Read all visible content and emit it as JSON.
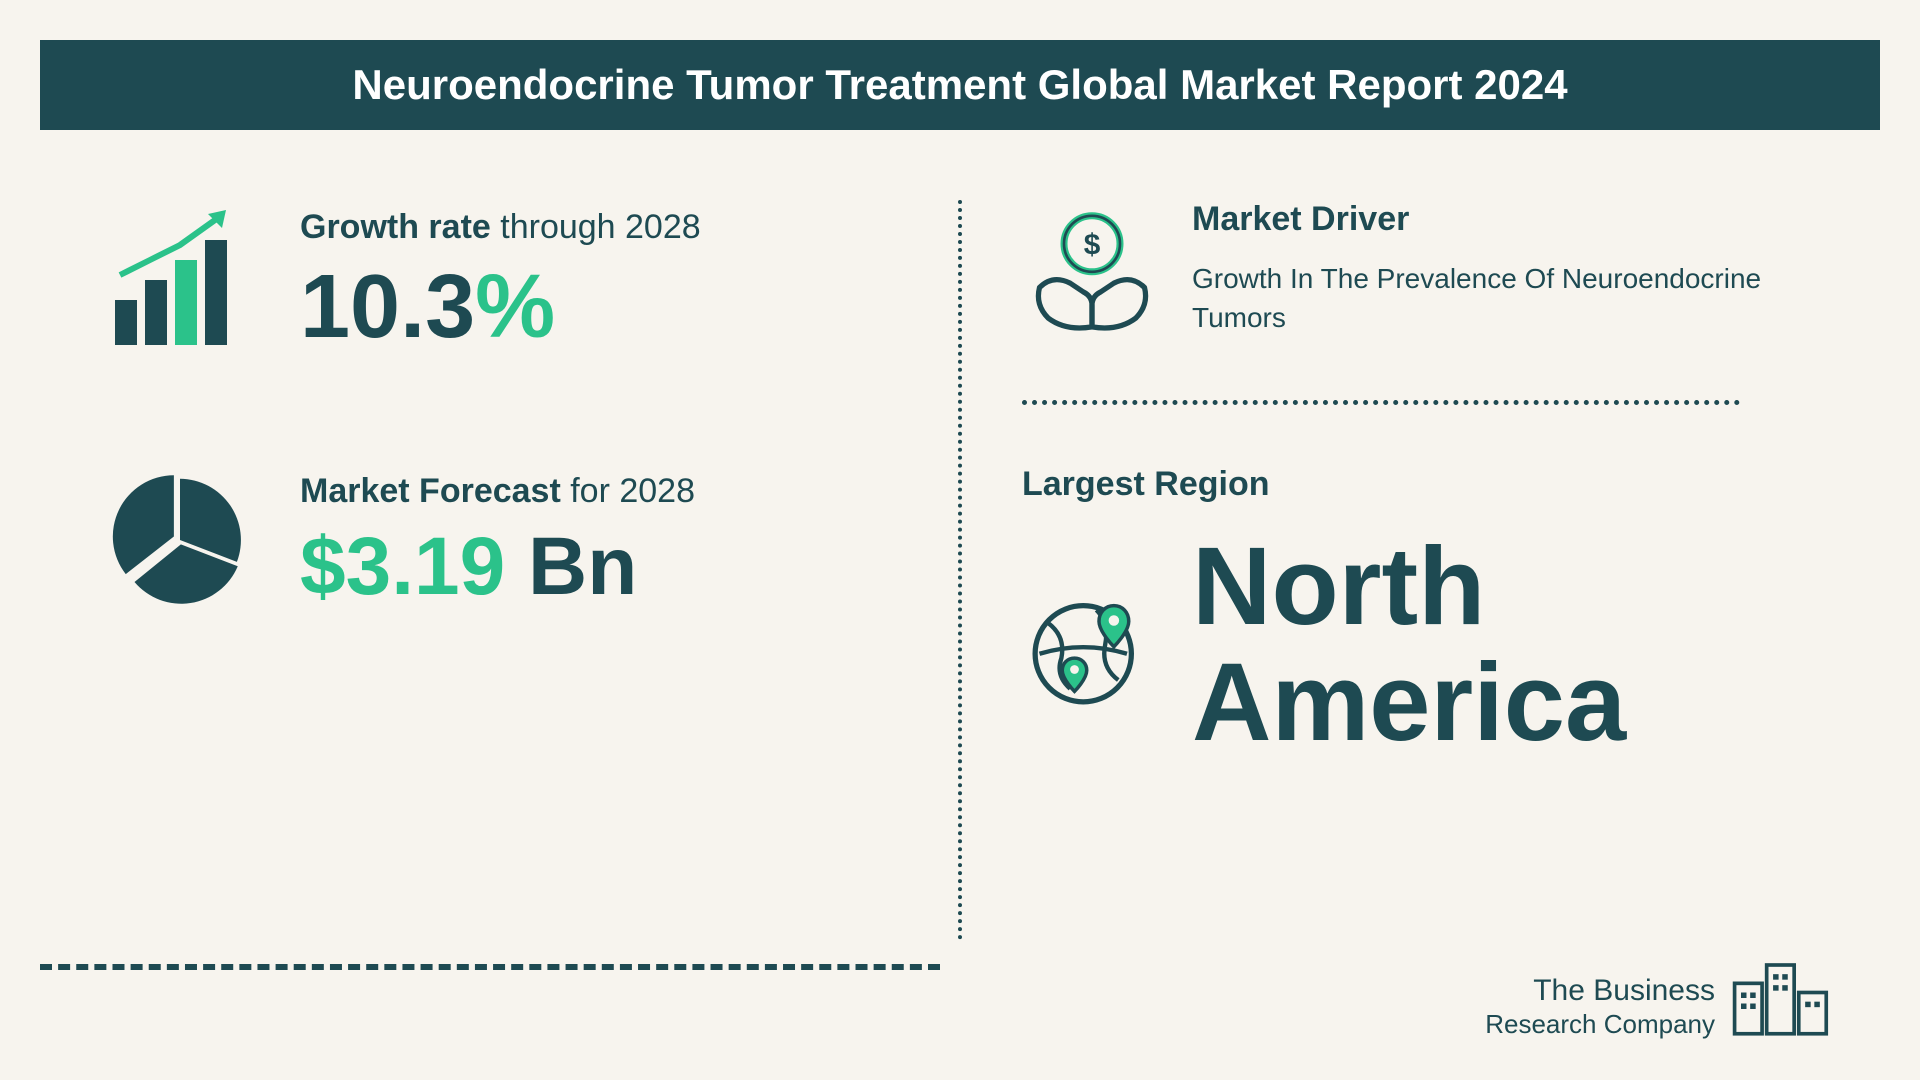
{
  "header": {
    "title": "Neuroendocrine Tumor Treatment Global Market Report 2024"
  },
  "growth": {
    "label_bold": "Growth rate",
    "label_rest": "through 2028",
    "value": "10.3",
    "value_suffix": "%",
    "icon_colors": {
      "bars": "#1e4a52",
      "accent_bar": "#2bc28a",
      "arrow": "#2bc28a"
    }
  },
  "forecast": {
    "label_bold": "Market Forecast",
    "label_rest": "for 2028",
    "currency": "$",
    "value": "3.19",
    "unit": "Bn",
    "icon_color": "#1e4a52"
  },
  "driver": {
    "heading": "Market Driver",
    "description": "Growth In The Prevalence Of Neuroendocrine Tumors",
    "icon_colors": {
      "stroke": "#1e4a52",
      "accent": "#2bc28a"
    }
  },
  "region": {
    "heading": "Largest Region",
    "value_line1": "North",
    "value_line2": "America",
    "icon_colors": {
      "stroke": "#1e4a52",
      "accent": "#2bc28a"
    }
  },
  "logo": {
    "line1": "The Business",
    "line2": "Research Company",
    "icon_color": "#1e4a52"
  },
  "colors": {
    "background": "#f7f4ee",
    "primary": "#1e4a52",
    "accent": "#2bc28a",
    "white": "#ffffff"
  }
}
